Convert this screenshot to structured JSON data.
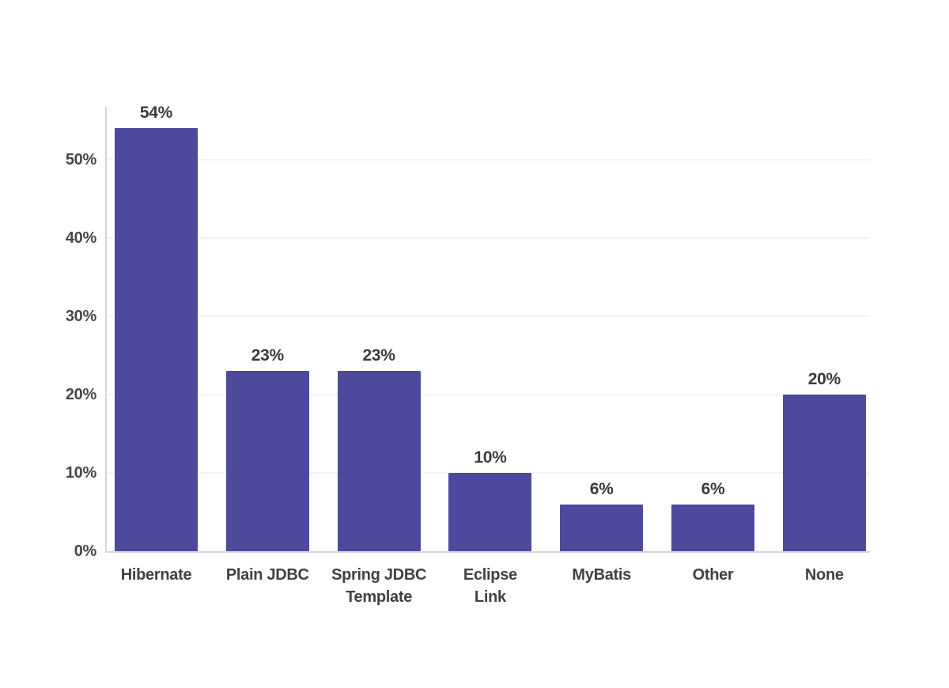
{
  "chart_data": {
    "type": "bar",
    "title": "",
    "xlabel": "",
    "ylabel": "",
    "categories": [
      "Hibernate",
      "Plain JDBC",
      "Spring JDBC\nTemplate",
      "Eclipse\nLink",
      "MyBatis",
      "Other",
      "None"
    ],
    "values": [
      54,
      23,
      23,
      10,
      6,
      6,
      20
    ],
    "value_labels": [
      "54%",
      "23%",
      "23%",
      "10%",
      "6%",
      "6%",
      "20%"
    ],
    "y_ticks": [
      {
        "value": 0,
        "label": "0%"
      },
      {
        "value": 10,
        "label": "10%"
      },
      {
        "value": 20,
        "label": "20%"
      },
      {
        "value": 30,
        "label": "30%"
      },
      {
        "value": 40,
        "label": "40%"
      },
      {
        "value": 50,
        "label": "50%"
      }
    ],
    "ylim": [
      0,
      57
    ],
    "grid": true,
    "legend": "none",
    "colors": {
      "bar": "#4d499c",
      "value_label": "#3a3a3a",
      "tick_label": "#474747",
      "category_label": "#414141",
      "axis_line": "#d6d6d6",
      "gridline": "#f4f4f4",
      "background": "#ffffff"
    }
  }
}
